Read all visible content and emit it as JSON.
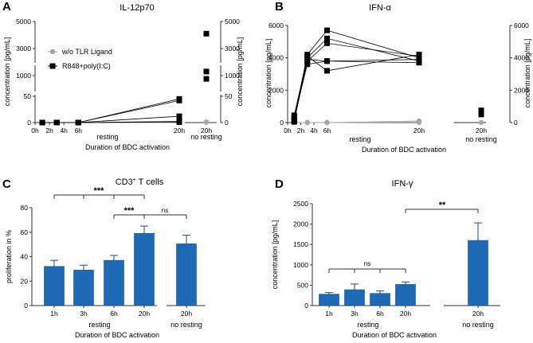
{
  "panels": {
    "A": {
      "letter": "A",
      "title": "IL-12p70"
    },
    "B": {
      "letter": "B",
      "title": "IFN-α"
    },
    "C": {
      "letter": "C",
      "title_main": "CD3",
      "title_sup": "+",
      "title_rest": " T cells"
    },
    "D": {
      "letter": "D",
      "title": "IFN-γ"
    }
  },
  "colors": {
    "grey": "#a6a6a6",
    "black": "#000000",
    "bar": "#1f6ab6",
    "axis": "#333333"
  },
  "chart_data": [
    {
      "id": "A",
      "type": "line",
      "title": "IL-12p70",
      "ylabel": "concentration [pg/mL]",
      "ylabel_right": "concentration [pg/mL]",
      "xlabel": "Duration of BDC activation",
      "x_ticks": [
        "0h",
        "2h",
        "4h",
        "6h",
        "20h"
      ],
      "x_extra_tick": "20h",
      "group_labels": [
        "resting",
        "no resting"
      ],
      "y_axis": "segmented",
      "y_ticks": [
        "0",
        "50",
        "1000",
        "3000",
        "5000"
      ],
      "legend": [
        "w/o TLR Ligand",
        "R848+poly(I:C)"
      ],
      "legend_placement": "top-left",
      "series": [
        {
          "name": "w/o TLR Ligand",
          "marker": "circle",
          "x": [
            1,
            3,
            6,
            20
          ],
          "donors": [
            [
              0,
              0,
              0,
              0
            ],
            [
              0,
              0,
              0,
              0
            ],
            [
              0,
              0,
              0,
              0
            ],
            [
              0,
              0,
              0,
              0
            ],
            [
              0,
              0,
              0,
              0
            ]
          ]
        },
        {
          "name": "R848+poly(I:C)",
          "marker": "square",
          "x": [
            1,
            3,
            6,
            20
          ],
          "donors": [
            [
              0,
              0,
              0,
              45
            ],
            [
              0,
              0,
              0,
              42
            ],
            [
              0,
              0,
              0,
              12
            ],
            [
              0,
              0,
              0,
              2
            ],
            [
              0,
              0,
              0,
              1
            ]
          ]
        }
      ],
      "no_resting": {
        "w/o TLR Ligand": [
          1,
          1,
          1
        ],
        "R848+poly(I:C)": [
          4100,
          1300,
          850
        ]
      }
    },
    {
      "id": "B",
      "type": "line",
      "title": "IFN-α",
      "ylabel": "concentration [pg/mL]",
      "ylabel_right": "concentration [pg/mL]",
      "xlabel": "Duration of BDC activation",
      "x_ticks": [
        "0h",
        "2h",
        "4h",
        "6h",
        "20h"
      ],
      "x_extra_tick": "20h",
      "group_labels": [
        "resting",
        "no resting"
      ],
      "ylim": [
        0,
        6000
      ],
      "y_ticks": [
        "0",
        "2000",
        "4000",
        "6000"
      ],
      "series": [
        {
          "name": "w/o TLR Ligand",
          "marker": "circle",
          "x": [
            1,
            3,
            6,
            20
          ],
          "donors": [
            [
              0,
              0,
              0,
              100
            ],
            [
              0,
              0,
              0,
              50
            ],
            [
              0,
              0,
              0,
              20
            ]
          ]
        },
        {
          "name": "R848+poly(I:C)",
          "marker": "square",
          "x": [
            1,
            3,
            6,
            20
          ],
          "donors": [
            [
              200,
              4200,
              5700,
              4000
            ],
            [
              450,
              4000,
              5200,
              3800
            ],
            [
              100,
              3800,
              4900,
              4100
            ],
            [
              300,
              3600,
              3800,
              3900
            ],
            [
              50,
              4100,
              3200,
              4200
            ],
            [
              150,
              3900,
              3800,
              3700
            ]
          ]
        }
      ],
      "no_resting": {
        "w/o TLR Ligand": [
          0
        ],
        "R848+poly(I:C)": [
          750,
          500
        ]
      }
    },
    {
      "id": "C",
      "type": "bar",
      "title": "CD3+ T cells",
      "ylabel": "proliferation in %",
      "xlabel": "Duration of BDC activation",
      "categories": [
        "1h",
        "3h",
        "6h",
        "20h",
        "20h"
      ],
      "group_labels": [
        "resting",
        "no resting"
      ],
      "values": [
        32,
        29,
        37,
        59,
        50.5
      ],
      "errors": [
        5,
        4,
        4,
        6,
        7
      ],
      "ylim": [
        0,
        80
      ],
      "y_ticks": [
        "0",
        "20",
        "40",
        "60",
        "80"
      ],
      "significance": [
        {
          "label": "***",
          "from": 0,
          "to": 3
        },
        {
          "label": "***",
          "from": 2,
          "to": 3
        },
        {
          "label": "ns",
          "from": 3,
          "to": 4
        }
      ]
    },
    {
      "id": "D",
      "type": "bar",
      "title": "IFN-γ",
      "ylabel": "concentration [pg/mL]",
      "xlabel": "Duration of BDC activation",
      "categories": [
        "1h",
        "3h",
        "6h",
        "20h",
        "20h"
      ],
      "group_labels": [
        "resting",
        "no resting"
      ],
      "values": [
        280,
        390,
        300,
        520,
        1600
      ],
      "errors": [
        40,
        140,
        60,
        60,
        430
      ],
      "ylim": [
        0,
        2500
      ],
      "y_ticks": [
        "0",
        "500",
        "1000",
        "1500",
        "2000",
        "2500"
      ],
      "significance": [
        {
          "label": "ns",
          "from": 0,
          "to": 3
        },
        {
          "label": "**",
          "from": 3,
          "to": 4
        }
      ]
    }
  ]
}
